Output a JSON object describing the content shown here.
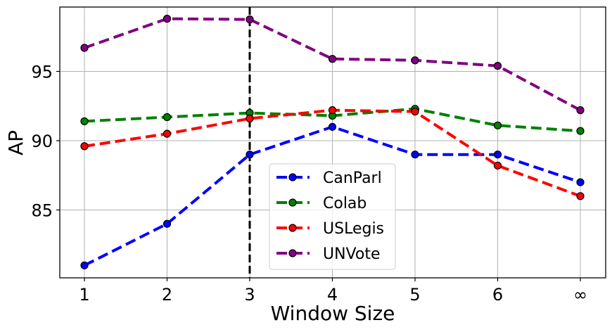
{
  "chart_data": {
    "type": "line",
    "title": "",
    "xlabel": "Window Size",
    "ylabel": "AP",
    "categories": [
      "1",
      "2",
      "3",
      "4",
      "5",
      "6",
      "∞"
    ],
    "y_ticks": [
      85,
      90,
      95
    ],
    "ylim": [
      79.9,
      99.6
    ],
    "grid": true,
    "legend_position": "lower center",
    "vertical_reference_line": {
      "x": "3",
      "style": "dashed",
      "color": "#000000"
    },
    "series": [
      {
        "name": "CanParl",
        "color": "#0000ff",
        "values": [
          81.0,
          84.0,
          89.0,
          91.0,
          89.0,
          89.0,
          87.0
        ]
      },
      {
        "name": "Colab",
        "color": "#008000",
        "values": [
          91.4,
          91.7,
          92.0,
          91.8,
          92.3,
          91.1,
          90.7
        ]
      },
      {
        "name": "USLegis",
        "color": "#ff0000",
        "values": [
          89.6,
          90.5,
          91.6,
          92.2,
          92.1,
          88.2,
          86.0
        ]
      },
      {
        "name": "UNVote",
        "color": "#800080",
        "values": [
          96.7,
          98.8,
          98.75,
          95.9,
          95.8,
          95.4,
          92.2
        ]
      }
    ]
  }
}
